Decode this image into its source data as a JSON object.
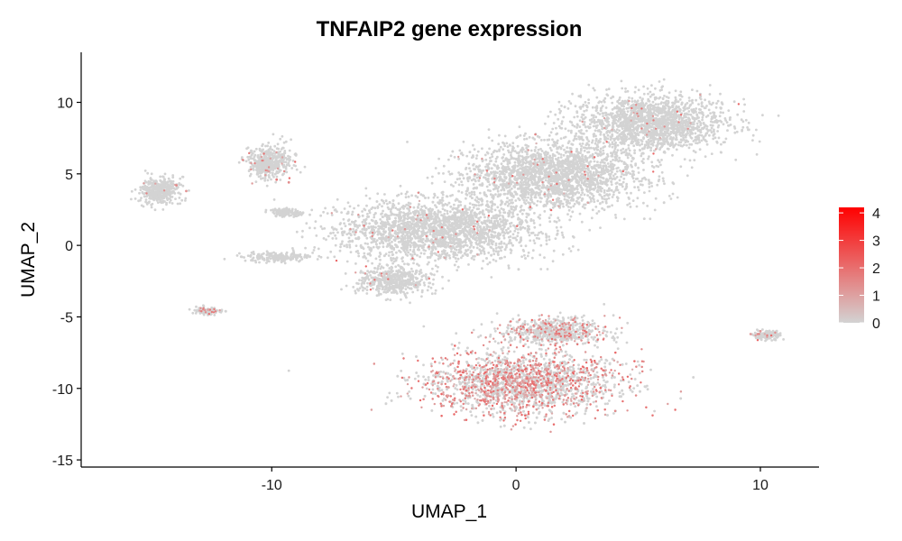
{
  "chart_data": {
    "type": "scatter",
    "title": "TNFAIP2 gene expression",
    "xlabel": "UMAP_1",
    "ylabel": "UMAP_2",
    "xlim": [
      -17.8,
      12.4
    ],
    "ylim": [
      -15.5,
      13.5
    ],
    "x_ticks": [
      -10,
      0,
      10
    ],
    "y_ticks": [
      10,
      5,
      0,
      -5,
      -10,
      -15
    ],
    "grid": false,
    "legend": {
      "position": "right",
      "type": "colorbar",
      "min": 0,
      "max": 4.2,
      "ticks": [
        0,
        1,
        2,
        3,
        4
      ],
      "low_color": "#d3d3d3",
      "high_color": "#ff0000"
    },
    "base_point_color": "#d3d3d3",
    "clusters": [
      {
        "cluster": "upper-main-tip",
        "center": [
          5.5,
          8.5
        ],
        "spread": [
          2.8,
          1.8
        ],
        "n_cells": 1800,
        "expressing_fraction": 0.015
      },
      {
        "cluster": "upper-main-body",
        "center": [
          1.5,
          4.8
        ],
        "spread": [
          3.2,
          2.1
        ],
        "n_cells": 2200,
        "expressing_fraction": 0.015
      },
      {
        "cluster": "upper-main-base",
        "center": [
          -3.2,
          1.0
        ],
        "spread": [
          3.6,
          1.9
        ],
        "n_cells": 2400,
        "expressing_fraction": 0.015
      },
      {
        "cluster": "upper-main-lobe",
        "center": [
          -5.0,
          -2.5
        ],
        "spread": [
          1.3,
          0.9
        ],
        "n_cells": 500,
        "expressing_fraction": 0.02
      },
      {
        "cluster": "lower-monocyte",
        "center": [
          0.2,
          -9.6
        ],
        "spread": [
          3.6,
          2.0
        ],
        "n_cells": 3000,
        "expressing_fraction": 0.45
      },
      {
        "cluster": "lower-upper-lobe",
        "center": [
          1.5,
          -6.0
        ],
        "spread": [
          2.0,
          0.8
        ],
        "n_cells": 600,
        "expressing_fraction": 0.25
      },
      {
        "cluster": "left-small-1",
        "center": [
          -14.6,
          3.8
        ],
        "spread": [
          0.7,
          0.9
        ],
        "n_cells": 400,
        "expressing_fraction": 0.02
      },
      {
        "cluster": "left-small-2",
        "center": [
          -10.1,
          5.8
        ],
        "spread": [
          0.8,
          1.0
        ],
        "n_cells": 450,
        "expressing_fraction": 0.05
      },
      {
        "cluster": "mid-left-strip",
        "center": [
          -9.4,
          2.3
        ],
        "spread": [
          0.5,
          0.25
        ],
        "n_cells": 150,
        "expressing_fraction": 0.0
      },
      {
        "cluster": "mid-left-strip-2",
        "center": [
          -9.7,
          -0.8
        ],
        "spread": [
          1.3,
          0.3
        ],
        "n_cells": 180,
        "expressing_fraction": 0.0
      },
      {
        "cluster": "bottom-left-small",
        "center": [
          -12.6,
          -4.6
        ],
        "spread": [
          0.5,
          0.25
        ],
        "n_cells": 120,
        "expressing_fraction": 0.1
      },
      {
        "cluster": "right-small",
        "center": [
          10.3,
          -6.3
        ],
        "spread": [
          0.5,
          0.25
        ],
        "n_cells": 140,
        "expressing_fraction": 0.05
      }
    ],
    "highlighted_points": [
      {
        "x": -13.9,
        "y": 4.2,
        "value": 1.5
      },
      {
        "x": -13.5,
        "y": 3.8,
        "value": 1.3
      },
      {
        "x": -9.8,
        "y": 4.6,
        "value": 1.8
      },
      {
        "x": -9.3,
        "y": 4.4,
        "value": 1.4
      },
      {
        "x": 10.0,
        "y": -6.0,
        "value": 1.2
      },
      {
        "x": 9.6,
        "y": -6.2,
        "value": 1.1
      },
      {
        "x": -12.6,
        "y": -4.5,
        "value": 1.0
      }
    ]
  }
}
